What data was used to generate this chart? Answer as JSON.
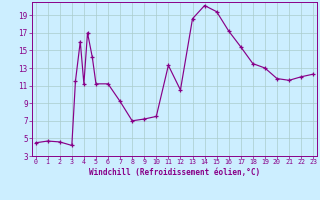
{
  "x": [
    0,
    1,
    2,
    3,
    3.3,
    3.7,
    4,
    4.3,
    4.7,
    5,
    6,
    7,
    8,
    9,
    10,
    11,
    12,
    13,
    14,
    15,
    16,
    17,
    18,
    19,
    20,
    21,
    22,
    23
  ],
  "y": [
    4.5,
    4.7,
    4.6,
    4.2,
    11.5,
    16.0,
    11.2,
    17.0,
    14.2,
    11.2,
    11.2,
    9.2,
    7.0,
    7.2,
    7.5,
    13.3,
    10.5,
    18.6,
    20.1,
    19.4,
    17.2,
    15.4,
    13.5,
    13.0,
    11.8,
    11.6,
    12.0,
    12.3
  ],
  "line_color": "#880088",
  "marker": "+",
  "bg_color": "#cceeff",
  "grid_color": "#aacccc",
  "xlabel": "Windchill (Refroidissement éolien,°C)",
  "yticks": [
    3,
    5,
    7,
    9,
    11,
    13,
    15,
    17,
    19
  ],
  "xticks": [
    0,
    1,
    2,
    3,
    4,
    5,
    6,
    7,
    8,
    9,
    10,
    11,
    12,
    13,
    14,
    15,
    16,
    17,
    18,
    19,
    20,
    21,
    22,
    23
  ],
  "ylim": [
    3,
    20.5
  ],
  "xlim": [
    -0.3,
    23.3
  ]
}
